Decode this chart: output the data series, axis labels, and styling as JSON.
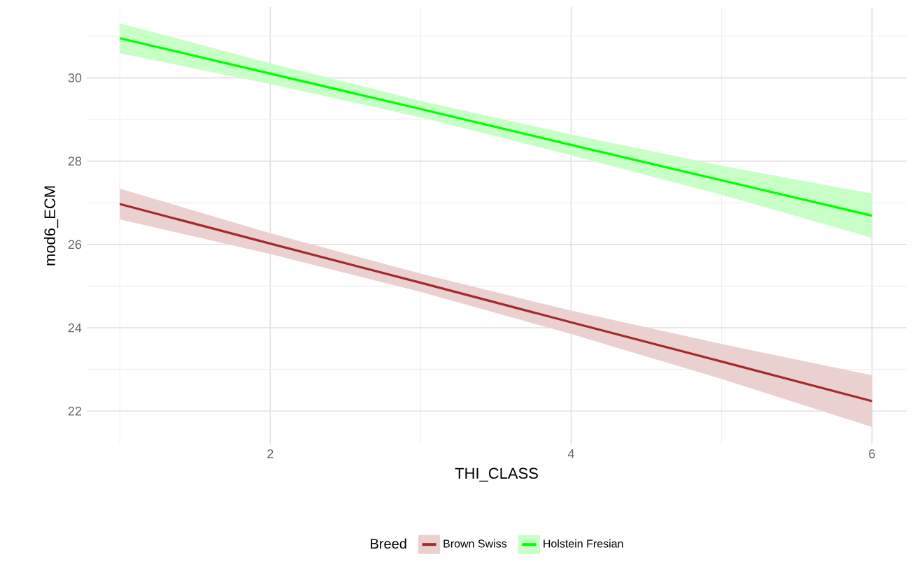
{
  "chart_data": {
    "type": "line",
    "xlabel": "THI_CLASS",
    "ylabel": "mod6_ECM",
    "legend_title": "Breed",
    "x": [
      1,
      2,
      3,
      4,
      5,
      6
    ],
    "series": [
      {
        "name": "Brown Swiss",
        "color": "#a52a2a",
        "values": [
          26.97,
          26.02,
          25.08,
          24.13,
          23.19,
          22.24
        ],
        "lower": [
          26.6,
          25.77,
          24.86,
          23.85,
          22.77,
          21.62
        ],
        "upper": [
          27.34,
          26.27,
          25.3,
          24.41,
          23.61,
          22.86
        ]
      },
      {
        "name": "Holstein Fresian",
        "color": "#00ff00",
        "values": [
          30.95,
          30.1,
          29.25,
          28.39,
          27.54,
          26.69
        ],
        "lower": [
          30.59,
          29.85,
          29.05,
          28.14,
          27.19,
          26.16
        ],
        "upper": [
          31.31,
          30.35,
          29.45,
          28.64,
          27.89,
          27.22
        ]
      }
    ],
    "xlim": [
      0.78,
      6.23
    ],
    "ylim": [
      21.2,
      31.7
    ],
    "xticks": [
      2,
      4,
      6
    ],
    "yticks": [
      22,
      24,
      26,
      28,
      30
    ],
    "grid": true,
    "legend": "bottom",
    "marker": "none",
    "line_style": "solid"
  }
}
